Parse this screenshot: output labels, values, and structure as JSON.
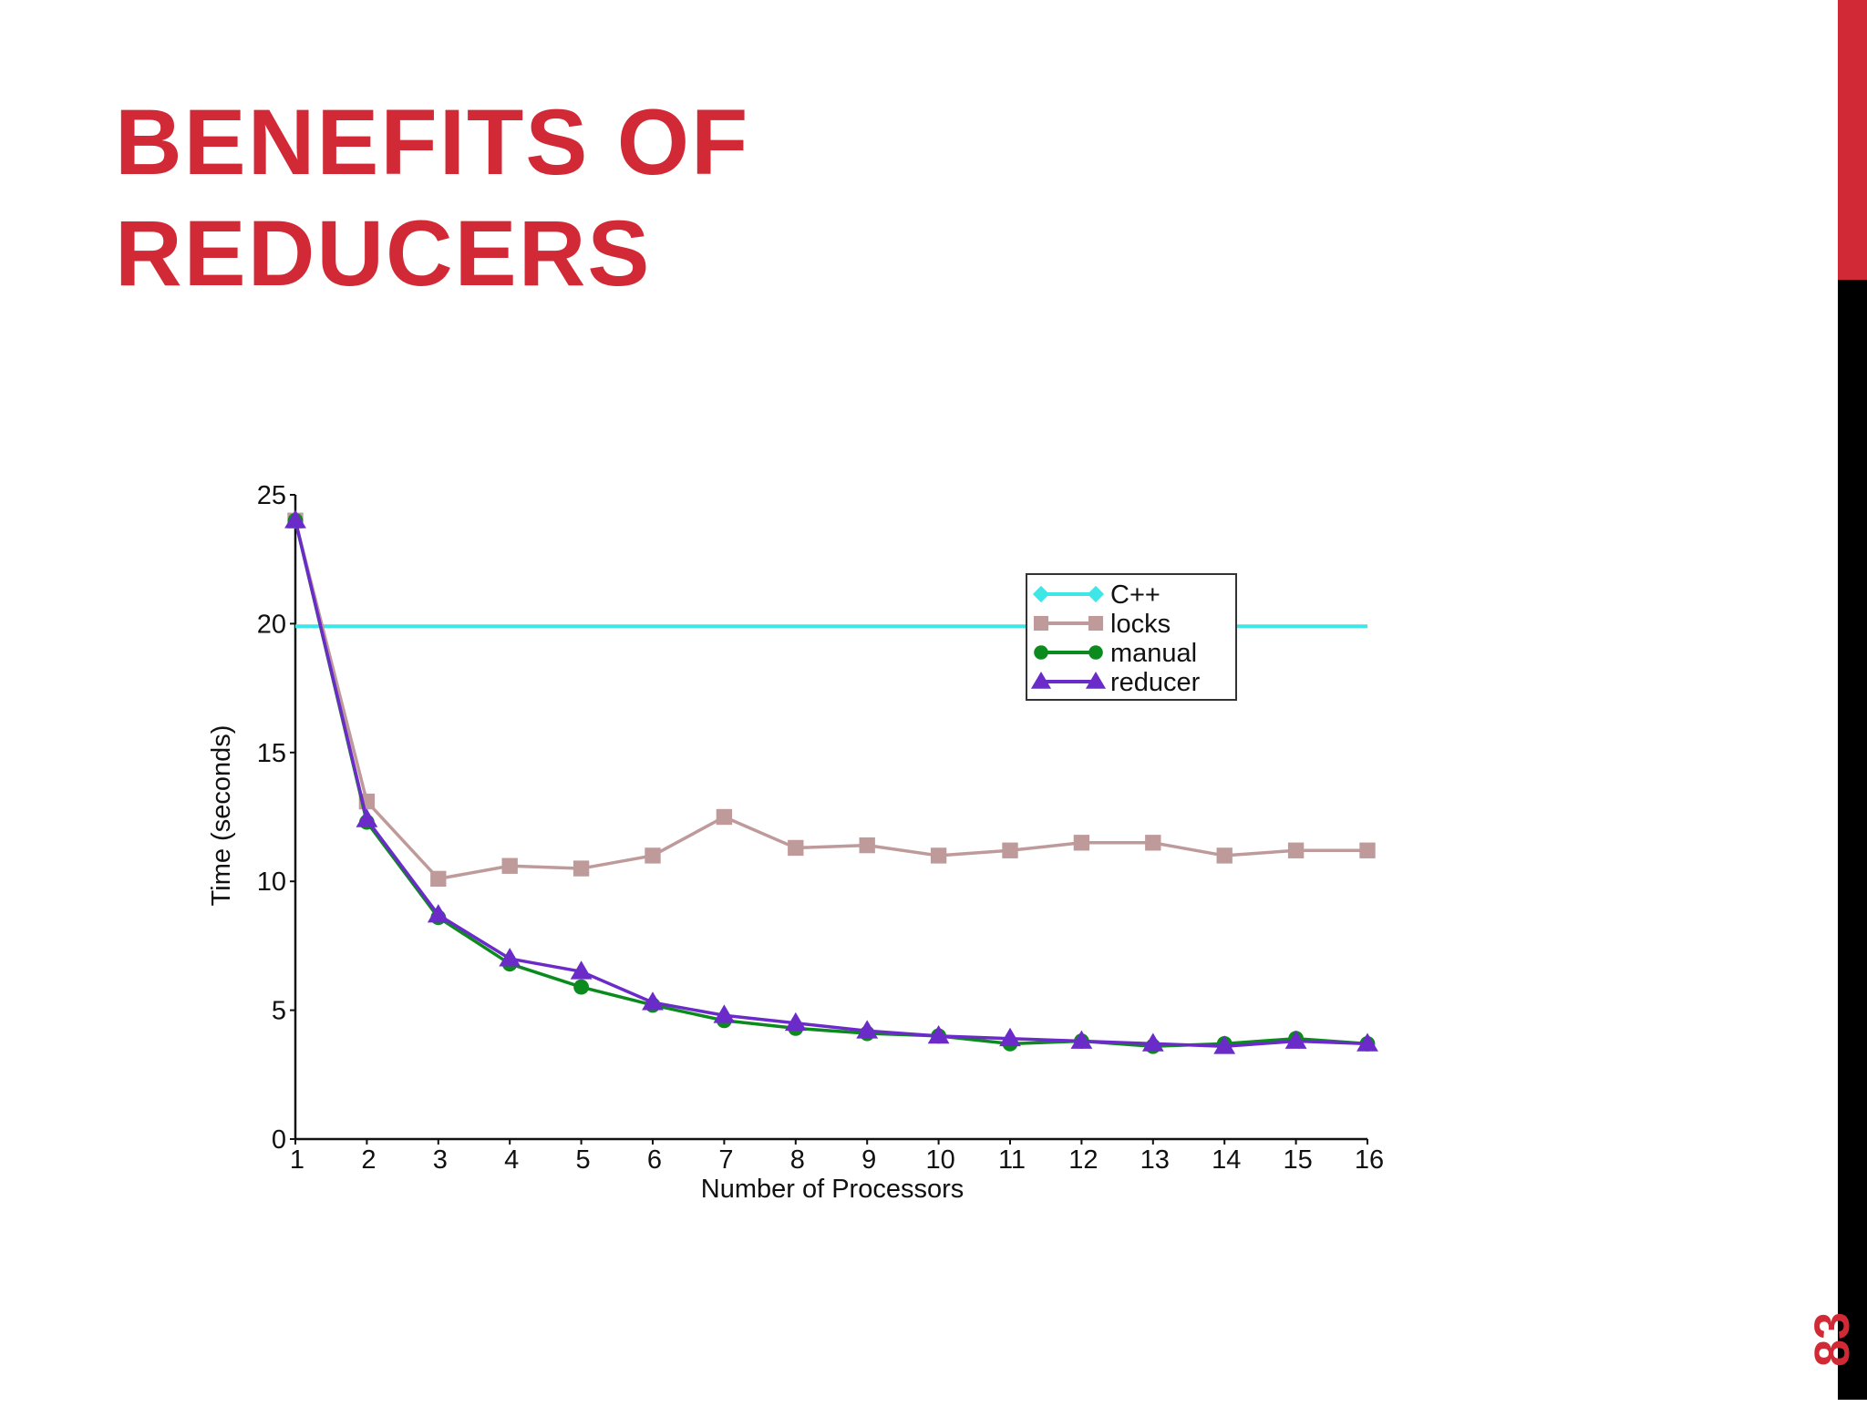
{
  "slide": {
    "title_line1": "BENEFITS OF",
    "title_line2": "REDUCERS",
    "page_number": "83"
  },
  "colors": {
    "title": "#d12a36",
    "sidebar_top": "#d12a36",
    "sidebar_bottom": "#000000"
  },
  "chart_data": {
    "type": "line",
    "title": "",
    "xlabel": "Number of Processors",
    "ylabel": "Time (seconds)",
    "xlim": [
      1,
      16
    ],
    "ylim": [
      0,
      25
    ],
    "x": [
      1,
      2,
      3,
      4,
      5,
      6,
      7,
      8,
      9,
      10,
      11,
      12,
      13,
      14,
      15,
      16
    ],
    "x_ticks": [
      "1",
      "2",
      "3",
      "4",
      "5",
      "6",
      "7",
      "8",
      "9",
      "10",
      "11",
      "12",
      "13",
      "14",
      "15",
      "16"
    ],
    "y_ticks": [
      "0",
      "5",
      "10",
      "15",
      "20",
      "25"
    ],
    "legend_position": "top-right",
    "grid": false,
    "series": [
      {
        "name": "C++",
        "color": "#3fe6e8",
        "marker": "diamond",
        "x": [
          1,
          16
        ],
        "values": [
          19.9,
          19.9
        ]
      },
      {
        "name": "locks",
        "color": "#bf9a9a",
        "marker": "square",
        "x": [
          1,
          2,
          3,
          4,
          5,
          6,
          7,
          8,
          9,
          10,
          11,
          12,
          13,
          14,
          15,
          16
        ],
        "values": [
          24.0,
          13.1,
          10.1,
          10.6,
          10.5,
          11.0,
          12.5,
          11.3,
          11.4,
          11.0,
          11.2,
          11.5,
          11.5,
          11.0,
          11.2,
          11.2
        ]
      },
      {
        "name": "manual",
        "color": "#0b8a1e",
        "marker": "circle",
        "x": [
          1,
          2,
          3,
          4,
          5,
          6,
          7,
          8,
          9,
          10,
          11,
          12,
          13,
          14,
          15,
          16
        ],
        "values": [
          24.0,
          12.3,
          8.6,
          6.8,
          5.9,
          5.2,
          4.6,
          4.3,
          4.1,
          4.0,
          3.7,
          3.8,
          3.6,
          3.7,
          3.9,
          3.7
        ]
      },
      {
        "name": "reducer",
        "color": "#6a2bc8",
        "marker": "triangle",
        "x": [
          1,
          2,
          3,
          4,
          5,
          6,
          7,
          8,
          9,
          10,
          11,
          12,
          13,
          14,
          15,
          16
        ],
        "values": [
          24.0,
          12.4,
          8.7,
          7.0,
          6.5,
          5.3,
          4.8,
          4.5,
          4.2,
          4.0,
          3.9,
          3.8,
          3.7,
          3.6,
          3.8,
          3.7
        ]
      }
    ]
  }
}
